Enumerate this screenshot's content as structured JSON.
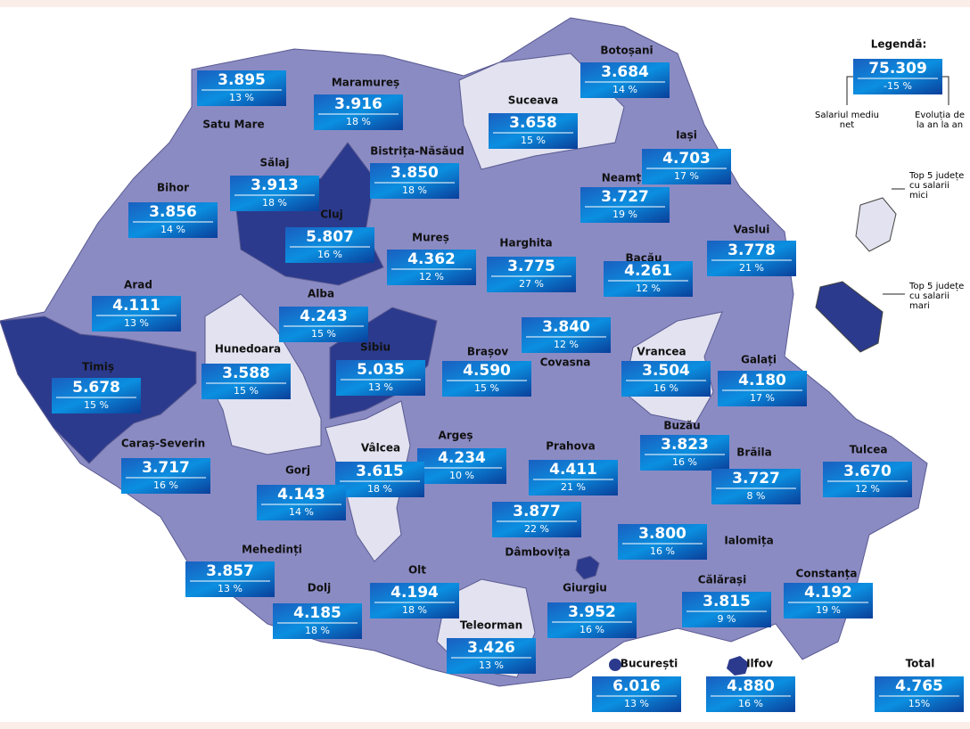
{
  "legend": {
    "title": "Legendă:",
    "salary": "75.309",
    "change": "-15 %",
    "salary_caption": "Salariul mediu net",
    "change_caption": "Evoluția de la an la an",
    "small_caption": "Top 5 județe cu salarii mici",
    "large_caption": "Top 5 județe cu salarii mari"
  },
  "counties": [
    {
      "name": "Satu Mare",
      "salary": "3.895",
      "change": "13 %"
    },
    {
      "name": "Maramureș",
      "salary": "3.916",
      "change": "18 %"
    },
    {
      "name": "Botoșani",
      "salary": "3.684",
      "change": "14 %"
    },
    {
      "name": "Suceava",
      "salary": "3.658",
      "change": "15 %"
    },
    {
      "name": "Sălaj",
      "salary": "3.913",
      "change": "18 %"
    },
    {
      "name": "Bistrița-Năsăud",
      "salary": "3.850",
      "change": "18 %"
    },
    {
      "name": "Iași",
      "salary": "4.703",
      "change": "17 %"
    },
    {
      "name": "Bihor",
      "salary": "3.856",
      "change": "14 %"
    },
    {
      "name": "Cluj",
      "salary": "5.807",
      "change": "16 %"
    },
    {
      "name": "Neamț",
      "salary": "3.727",
      "change": "19 %"
    },
    {
      "name": "Vaslui",
      "salary": "3.778",
      "change": "21 %"
    },
    {
      "name": "Mureș",
      "salary": "4.362",
      "change": "12 %"
    },
    {
      "name": "Harghita",
      "salary": "3.775",
      "change": "27 %"
    },
    {
      "name": "Bacău",
      "salary": "4.261",
      "change": "12 %"
    },
    {
      "name": "Arad",
      "salary": "4.111",
      "change": "13 %"
    },
    {
      "name": "Alba",
      "salary": "4.243",
      "change": "15 %"
    },
    {
      "name": "Covasna",
      "salary": "3.840",
      "change": "12 %"
    },
    {
      "name": "Vrancea",
      "salary": "3.504",
      "change": "16 %"
    },
    {
      "name": "Hunedoara",
      "salary": "3.588",
      "change": "15 %"
    },
    {
      "name": "Sibiu",
      "salary": "5.035",
      "change": "13 %"
    },
    {
      "name": "Brașov",
      "salary": "4.590",
      "change": "15 %"
    },
    {
      "name": "Timiș",
      "salary": "5.678",
      "change": "15 %"
    },
    {
      "name": "Galați",
      "salary": "4.180",
      "change": "17 %"
    },
    {
      "name": "Caraș-Severin",
      "salary": "3.717",
      "change": "16 %"
    },
    {
      "name": "Buzău",
      "salary": "3.823",
      "change": "16 %"
    },
    {
      "name": "Argeș",
      "salary": "4.234",
      "change": "10 %"
    },
    {
      "name": "Vâlcea",
      "salary": "3.615",
      "change": "18 %"
    },
    {
      "name": "Prahova",
      "salary": "4.411",
      "change": "21 %"
    },
    {
      "name": "Brăila",
      "salary": "3.727",
      "change": "8 %"
    },
    {
      "name": "Tulcea",
      "salary": "3.670",
      "change": "12 %"
    },
    {
      "name": "Gorj",
      "salary": "4.143",
      "change": "14 %"
    },
    {
      "name": "Dâmbovița",
      "salary": "3.877",
      "change": "22 %"
    },
    {
      "name": "Ialomița",
      "salary": "3.800",
      "change": "16 %"
    },
    {
      "name": "Mehedinți",
      "salary": "3.857",
      "change": "13 %"
    },
    {
      "name": "Olt",
      "salary": "4.194",
      "change": "18 %"
    },
    {
      "name": "Dolj",
      "salary": "4.185",
      "change": "18 %"
    },
    {
      "name": "Giurgiu",
      "salary": "3.952",
      "change": "16 %"
    },
    {
      "name": "Călărași",
      "salary": "3.815",
      "change": "9 %"
    },
    {
      "name": "Constanța",
      "salary": "4.192",
      "change": "19 %"
    },
    {
      "name": "Teleorman",
      "salary": "3.426",
      "change": "13 %"
    },
    {
      "name": "București",
      "salary": "6.016",
      "change": "13 %"
    },
    {
      "name": "Ilfov",
      "salary": "4.880",
      "change": "16 %"
    },
    {
      "name": "Total",
      "salary": "4.765",
      "change": "15%"
    }
  ]
}
